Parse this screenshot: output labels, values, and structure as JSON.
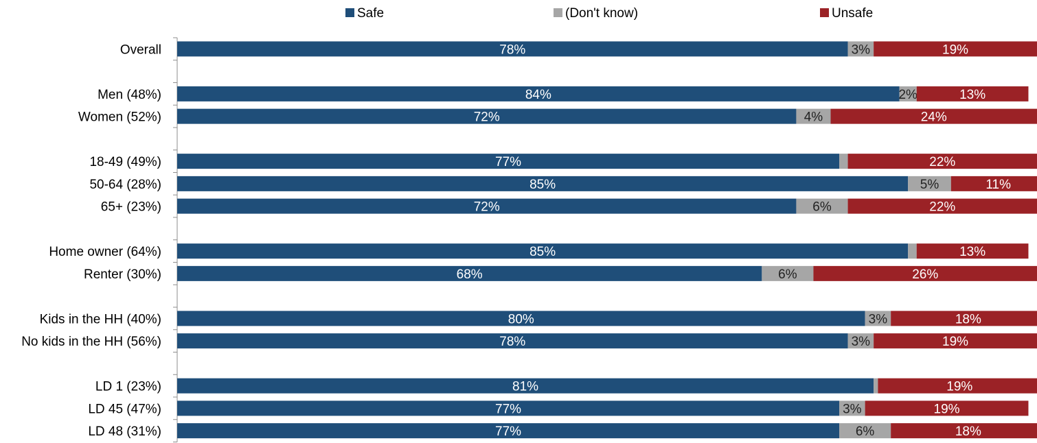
{
  "chart_data": {
    "type": "bar",
    "orientation": "horizontal",
    "stacked": true,
    "title": "",
    "xlabel": "",
    "ylabel": "",
    "xlim": [
      0,
      100
    ],
    "grid": false,
    "legend_position": "top",
    "slots": [
      "Overall",
      "",
      "Men (48%)",
      "Women (52%)",
      "",
      "18-49 (49%)",
      "50-64 (28%)",
      "65+ (23%)",
      "",
      "Home owner (64%)",
      "Renter (30%)",
      "",
      "Kids in the HH (40%)",
      "No kids in the HH (56%)",
      "",
      "LD 1 (23%)",
      "LD 45 (47%)",
      "LD 48 (31%)"
    ],
    "categories": [
      "Overall",
      "Men (48%)",
      "Women (52%)",
      "18-49 (49%)",
      "50-64 (28%)",
      "65+ (23%)",
      "Home owner (64%)",
      "Renter (30%)",
      "Kids in the HH (40%)",
      "No kids in the HH (56%)",
      "LD 1 (23%)",
      "LD 45 (47%)",
      "LD 48 (31%)"
    ],
    "series": [
      {
        "name": "Safe",
        "color": "#1F4E79",
        "values": [
          78,
          84,
          72,
          77,
          85,
          72,
          85,
          68,
          80,
          78,
          81,
          77,
          77
        ],
        "labels": [
          "78%",
          "84%",
          "72%",
          "77%",
          "85%",
          "72%",
          "85%",
          "68%",
          "80%",
          "78%",
          "81%",
          "77%",
          "77%"
        ]
      },
      {
        "name": "(Don't know)",
        "color": "#A6A6A6",
        "values": [
          3,
          2,
          4,
          1,
          5,
          6,
          1,
          6,
          3,
          3,
          0.5,
          3,
          6
        ],
        "labels": [
          "3%",
          "2%",
          "4%",
          "",
          "5%",
          "6%",
          "",
          "6%",
          "3%",
          "3%",
          "",
          "3%",
          "6%"
        ]
      },
      {
        "name": "Unsafe",
        "color": "#9B2226",
        "values": [
          19,
          13,
          24,
          22,
          11,
          22,
          13,
          26,
          18,
          19,
          19,
          19,
          18
        ],
        "labels": [
          "19%",
          "13%",
          "24%",
          "22%",
          "11%",
          "22%",
          "13%",
          "26%",
          "18%",
          "19%",
          "19%",
          "19%",
          "18%"
        ]
      }
    ]
  }
}
